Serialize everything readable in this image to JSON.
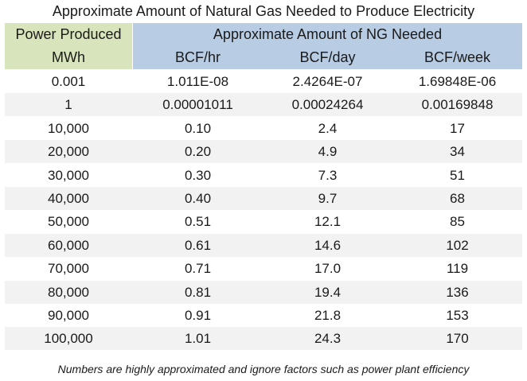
{
  "title": "Approximate Amount of Natural Gas Needed to Produce Electricity",
  "header": {
    "power_produced": "Power Produced",
    "power_unit": "MWh",
    "ng_needed": "Approximate Amount of NG Needed",
    "col_hr": "BCF/hr",
    "col_day": "BCF/day",
    "col_week": "BCF/week"
  },
  "rows": [
    {
      "mwh": "0.001",
      "hr": "1.011E-08",
      "day": "2.4264E-07",
      "week": "1.69848E-06"
    },
    {
      "mwh": "1",
      "hr": "0.00001011",
      "day": "0.00024264",
      "week": "0.00169848"
    },
    {
      "mwh": "10,000",
      "hr": "0.10",
      "day": "2.4",
      "week": "17"
    },
    {
      "mwh": "20,000",
      "hr": "0.20",
      "day": "4.9",
      "week": "34"
    },
    {
      "mwh": "30,000",
      "hr": "0.30",
      "day": "7.3",
      "week": "51"
    },
    {
      "mwh": "40,000",
      "hr": "0.40",
      "day": "9.7",
      "week": "68"
    },
    {
      "mwh": "50,000",
      "hr": "0.51",
      "day": "12.1",
      "week": "85"
    },
    {
      "mwh": "60,000",
      "hr": "0.61",
      "day": "14.6",
      "week": "102"
    },
    {
      "mwh": "70,000",
      "hr": "0.71",
      "day": "17.0",
      "week": "119"
    },
    {
      "mwh": "80,000",
      "hr": "0.81",
      "day": "19.4",
      "week": "136"
    },
    {
      "mwh": "90,000",
      "hr": "0.91",
      "day": "21.8",
      "week": "153"
    },
    {
      "mwh": "100,000",
      "hr": "1.01",
      "day": "24.3",
      "week": "170"
    }
  ],
  "footnote": "Numbers are highly approximated and ignore factors such as power plant efficiency",
  "colors": {
    "power_header_bg": "#d8e4bc",
    "ng_header_bg": "#b8cce4",
    "shaded_row_bg": "#f2f2f2"
  }
}
